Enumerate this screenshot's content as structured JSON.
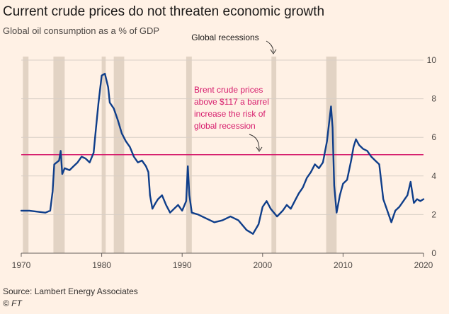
{
  "title": "Current crude prices do not threaten economic growth",
  "subtitle": "Global oil consumption as a % of GDP",
  "source": "Source: Lambert Energy Associates",
  "copyright": "© FT",
  "colors": {
    "background": "#fff1e5",
    "series": "#0f3e8a",
    "threshold": "#d61a6b",
    "recession": "#e2d3c4",
    "grid": "#d9cfc6",
    "annotation_text": "#d61a6b"
  },
  "chart_data": {
    "type": "line",
    "title": "Current crude prices do not threaten economic growth",
    "subtitle": "Global oil consumption as a % of GDP",
    "xlim": [
      1970,
      2020
    ],
    "ylim": [
      0,
      10
    ],
    "x_ticks": [
      "1970",
      "1980",
      "1990",
      "2000",
      "2010",
      "2020"
    ],
    "y_ticks": [
      "0",
      "2",
      "4",
      "6",
      "8",
      "10"
    ],
    "y_axis_side": "right",
    "grid": "horizontal",
    "threshold_value": 5.1,
    "recessions": [
      [
        1970.2,
        1970.9
      ],
      [
        1974.0,
        1975.4
      ],
      [
        1980.0,
        1980.5
      ],
      [
        1981.5,
        1982.8
      ],
      [
        1990.5,
        1991.2
      ],
      [
        2001.1,
        2001.7
      ],
      [
        2007.9,
        2009.2
      ]
    ],
    "annotations": {
      "recessions_label": "Global recessions",
      "threshold_label_lines": [
        "Brent crude prices",
        "above $117 a barrel",
        "increase the risk of",
        "global recession"
      ]
    },
    "series": [
      {
        "values": [
          [
            1970.0,
            2.2
          ],
          [
            1971.0,
            2.2
          ],
          [
            1972.0,
            2.15
          ],
          [
            1973.0,
            2.1
          ],
          [
            1973.6,
            2.2
          ],
          [
            1973.9,
            3.2
          ],
          [
            1974.1,
            4.6
          ],
          [
            1974.4,
            4.7
          ],
          [
            1974.7,
            4.8
          ],
          [
            1974.9,
            5.3
          ],
          [
            1975.1,
            4.1
          ],
          [
            1975.4,
            4.4
          ],
          [
            1976.0,
            4.3
          ],
          [
            1976.5,
            4.5
          ],
          [
            1977.0,
            4.7
          ],
          [
            1977.5,
            5.0
          ],
          [
            1978.0,
            4.9
          ],
          [
            1978.5,
            4.7
          ],
          [
            1979.0,
            5.2
          ],
          [
            1979.3,
            6.5
          ],
          [
            1979.6,
            7.8
          ],
          [
            1980.0,
            9.2
          ],
          [
            1980.4,
            9.3
          ],
          [
            1980.8,
            8.6
          ],
          [
            1981.0,
            7.8
          ],
          [
            1981.5,
            7.5
          ],
          [
            1982.0,
            6.9
          ],
          [
            1982.5,
            6.2
          ],
          [
            1983.0,
            5.8
          ],
          [
            1983.5,
            5.5
          ],
          [
            1984.0,
            5.0
          ],
          [
            1984.5,
            4.7
          ],
          [
            1985.0,
            4.8
          ],
          [
            1985.5,
            4.5
          ],
          [
            1985.8,
            4.2
          ],
          [
            1986.0,
            3.0
          ],
          [
            1986.3,
            2.3
          ],
          [
            1986.7,
            2.6
          ],
          [
            1987.0,
            2.8
          ],
          [
            1987.5,
            3.0
          ],
          [
            1988.0,
            2.5
          ],
          [
            1988.5,
            2.1
          ],
          [
            1989.0,
            2.3
          ],
          [
            1989.5,
            2.5
          ],
          [
            1990.0,
            2.2
          ],
          [
            1990.5,
            2.7
          ],
          [
            1990.7,
            4.5
          ],
          [
            1990.9,
            3.0
          ],
          [
            1991.2,
            2.1
          ],
          [
            1992.0,
            2.0
          ],
          [
            1993.0,
            1.8
          ],
          [
            1994.0,
            1.6
          ],
          [
            1995.0,
            1.7
          ],
          [
            1996.0,
            1.9
          ],
          [
            1997.0,
            1.7
          ],
          [
            1998.0,
            1.2
          ],
          [
            1998.8,
            1.0
          ],
          [
            1999.5,
            1.5
          ],
          [
            2000.0,
            2.4
          ],
          [
            2000.5,
            2.7
          ],
          [
            2001.0,
            2.3
          ],
          [
            2001.8,
            1.9
          ],
          [
            2002.5,
            2.2
          ],
          [
            2003.0,
            2.5
          ],
          [
            2003.5,
            2.3
          ],
          [
            2004.0,
            2.7
          ],
          [
            2004.5,
            3.1
          ],
          [
            2005.0,
            3.4
          ],
          [
            2005.5,
            3.9
          ],
          [
            2006.0,
            4.2
          ],
          [
            2006.5,
            4.6
          ],
          [
            2007.0,
            4.4
          ],
          [
            2007.5,
            4.7
          ],
          [
            2008.0,
            5.8
          ],
          [
            2008.5,
            7.6
          ],
          [
            2008.7,
            6.5
          ],
          [
            2008.9,
            3.5
          ],
          [
            2009.2,
            2.1
          ],
          [
            2009.6,
            3.0
          ],
          [
            2010.0,
            3.6
          ],
          [
            2010.5,
            3.8
          ],
          [
            2011.0,
            4.8
          ],
          [
            2011.3,
            5.5
          ],
          [
            2011.6,
            5.9
          ],
          [
            2012.0,
            5.6
          ],
          [
            2012.5,
            5.4
          ],
          [
            2013.0,
            5.3
          ],
          [
            2013.5,
            5.0
          ],
          [
            2014.0,
            4.8
          ],
          [
            2014.5,
            4.6
          ],
          [
            2015.0,
            2.8
          ],
          [
            2015.5,
            2.2
          ],
          [
            2016.0,
            1.6
          ],
          [
            2016.5,
            2.2
          ],
          [
            2017.0,
            2.4
          ],
          [
            2017.5,
            2.7
          ],
          [
            2018.0,
            3.0
          ],
          [
            2018.4,
            3.7
          ],
          [
            2018.8,
            2.6
          ],
          [
            2019.2,
            2.8
          ],
          [
            2019.6,
            2.7
          ],
          [
            2020.0,
            2.8
          ]
        ]
      }
    ]
  }
}
